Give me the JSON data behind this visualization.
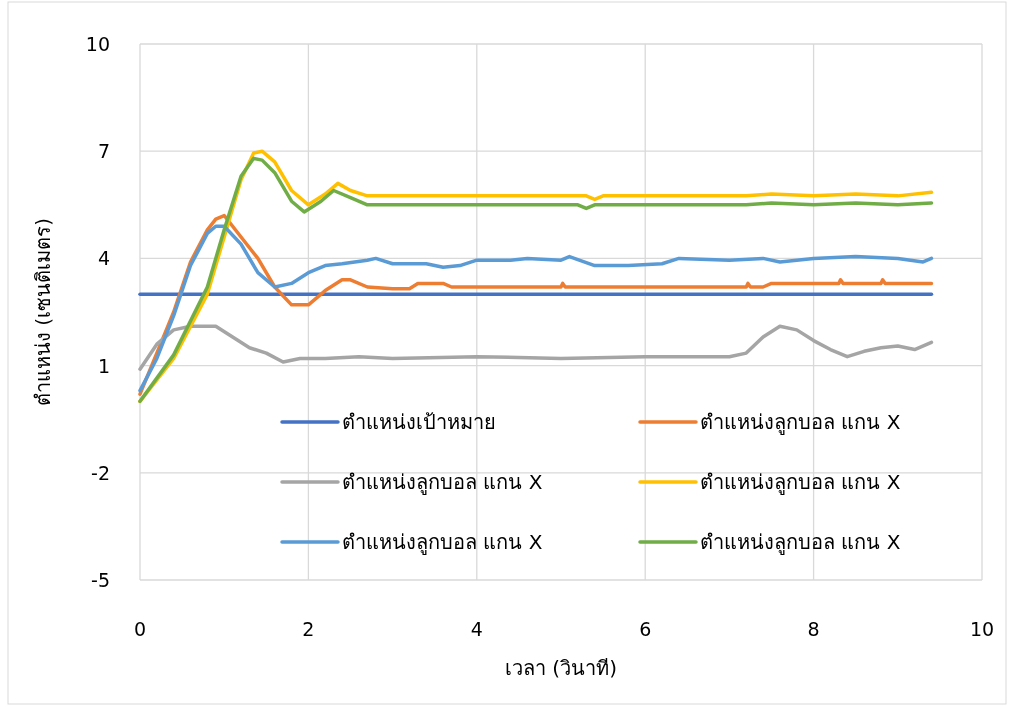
{
  "chart_data": {
    "type": "line",
    "xlabel": "เวลา (วินาที)",
    "ylabel": "ตำแหน่ง (เซนติเมตร)",
    "xlim": [
      0,
      10
    ],
    "xticks": [
      0,
      2,
      4,
      6,
      8,
      10
    ],
    "ylim": [
      -5,
      10
    ],
    "yticks": [
      -5,
      -2,
      1,
      4,
      7,
      10
    ],
    "grid": true,
    "legend": "bottom",
    "line_style": "solid",
    "series": [
      {
        "name": "ตำแหน่งเป้าหมาย",
        "color": "#4472c4",
        "x": [
          0,
          9.4
        ],
        "values": [
          3,
          3
        ]
      },
      {
        "name": "ตำแหน่งลูกบอล แกน X",
        "color": "#ed7d31",
        "x": [
          0,
          0.2,
          0.4,
          0.6,
          0.8,
          0.9,
          1.0,
          1.2,
          1.4,
          1.6,
          1.8,
          2.0,
          2.2,
          2.4,
          2.5,
          2.7,
          3.0,
          3.2,
          3.3,
          3.6,
          3.7,
          5.0,
          5.02,
          5.05,
          7.2,
          7.22,
          7.25,
          7.4,
          7.5,
          8.3,
          8.32,
          8.35,
          8.8,
          8.82,
          8.85,
          9.4
        ],
        "values": [
          0.2,
          1.35,
          2.5,
          3.9,
          4.8,
          5.1,
          5.2,
          4.6,
          4.0,
          3.2,
          2.7,
          2.7,
          3.1,
          3.4,
          3.4,
          3.2,
          3.15,
          3.15,
          3.3,
          3.3,
          3.2,
          3.2,
          3.3,
          3.2,
          3.2,
          3.3,
          3.2,
          3.2,
          3.3,
          3.3,
          3.4,
          3.3,
          3.3,
          3.4,
          3.3,
          3.3
        ]
      },
      {
        "name": "ตำแหน่งลูกบอล แกน X",
        "color": "#a5a5a5",
        "x": [
          0,
          0.2,
          0.4,
          0.6,
          0.9,
          1.1,
          1.3,
          1.5,
          1.7,
          1.9,
          2.2,
          2.6,
          3.0,
          4.0,
          5.0,
          6.0,
          7.0,
          7.2,
          7.4,
          7.6,
          7.8,
          8.0,
          8.2,
          8.4,
          8.6,
          8.8,
          9.0,
          9.2,
          9.4
        ],
        "values": [
          0.9,
          1.6,
          2.0,
          2.1,
          2.1,
          1.8,
          1.5,
          1.35,
          1.1,
          1.2,
          1.2,
          1.25,
          1.2,
          1.25,
          1.2,
          1.25,
          1.25,
          1.35,
          1.8,
          2.1,
          2.0,
          1.7,
          1.45,
          1.25,
          1.4,
          1.5,
          1.55,
          1.45,
          1.65
        ]
      },
      {
        "name": "ตำแหน่งลูกบอล แกน X",
        "color": "#ffc000",
        "x": [
          0,
          0.4,
          0.8,
          1.0,
          1.2,
          1.35,
          1.45,
          1.6,
          1.8,
          2.0,
          2.2,
          2.35,
          2.5,
          2.7,
          5.3,
          5.4,
          5.5,
          7.2,
          7.5,
          8.0,
          8.5,
          9.0,
          9.4
        ],
        "values": [
          0.0,
          1.2,
          3.0,
          4.6,
          6.2,
          6.95,
          7.0,
          6.7,
          5.9,
          5.5,
          5.8,
          6.1,
          5.9,
          5.75,
          5.75,
          5.65,
          5.75,
          5.75,
          5.8,
          5.75,
          5.8,
          5.75,
          5.85
        ]
      },
      {
        "name": "ตำแหน่งลูกบอล แกน X",
        "color": "#5b9bd5",
        "x": [
          0,
          0.2,
          0.4,
          0.6,
          0.8,
          0.9,
          1.0,
          1.2,
          1.4,
          1.6,
          1.8,
          2.0,
          2.2,
          2.4,
          2.7,
          2.8,
          3.0,
          3.4,
          3.6,
          3.8,
          4.0,
          4.4,
          4.6,
          5.0,
          5.1,
          5.4,
          5.8,
          6.2,
          6.4,
          7.0,
          7.4,
          7.6,
          8.0,
          8.5,
          9.0,
          9.3,
          9.4
        ],
        "values": [
          0.3,
          1.2,
          2.4,
          3.8,
          4.7,
          4.9,
          4.9,
          4.4,
          3.6,
          3.2,
          3.3,
          3.6,
          3.8,
          3.85,
          3.95,
          4.0,
          3.85,
          3.85,
          3.75,
          3.8,
          3.95,
          3.95,
          4.0,
          3.95,
          4.05,
          3.8,
          3.8,
          3.85,
          4.0,
          3.95,
          4.0,
          3.9,
          4.0,
          4.05,
          4.0,
          3.9,
          4.0
        ]
      },
      {
        "name": "ตำแหน่งลูกบอล แกน X",
        "color": "#70ad47",
        "x": [
          0,
          0.4,
          0.8,
          1.0,
          1.2,
          1.35,
          1.45,
          1.6,
          1.8,
          1.95,
          2.15,
          2.3,
          2.5,
          2.7,
          5.2,
          5.3,
          5.4,
          7.2,
          7.5,
          8.0,
          8.5,
          9.0,
          9.4
        ],
        "values": [
          0.0,
          1.3,
          3.2,
          4.8,
          6.3,
          6.8,
          6.75,
          6.4,
          5.6,
          5.3,
          5.6,
          5.9,
          5.7,
          5.5,
          5.5,
          5.4,
          5.5,
          5.5,
          5.55,
          5.5,
          5.55,
          5.5,
          5.55
        ]
      }
    ]
  }
}
